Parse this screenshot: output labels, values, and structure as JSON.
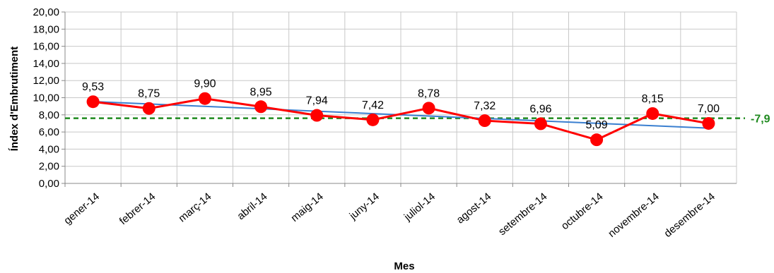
{
  "chart_data": {
    "type": "line",
    "categories": [
      "gener-14",
      "febrer-14",
      "març-14",
      "abril-14",
      "maig-14",
      "juny-14",
      "juliol-14",
      "agost-14",
      "setembre-14",
      "octubre-14",
      "novembre-14",
      "desembre-14"
    ],
    "series": [
      {
        "values": [
          9.53,
          8.75,
          9.9,
          8.95,
          7.94,
          7.42,
          8.78,
          7.32,
          6.96,
          5.09,
          8.15,
          7.0
        ],
        "data_labels": [
          "9,53",
          "8,75",
          "9,90",
          "8,95",
          "7,94",
          "7,42",
          "8,78",
          "7,32",
          "6,96",
          "5,09",
          "8,15",
          "7,00"
        ],
        "color": "#ff0000",
        "marker": "circle"
      }
    ],
    "trendline": {
      "start": 9.55,
      "end": 6.45,
      "color": "#3a7fd0"
    },
    "reference_line": {
      "value": 7.6,
      "label": "-7,9",
      "color": "#1f8a1f",
      "style": "dashed"
    },
    "yticks": [
      "0,00",
      "2,00",
      "4,00",
      "6,00",
      "8,00",
      "10,00",
      "12,00",
      "14,00",
      "16,00",
      "18,00",
      "20,00"
    ],
    "ylim": [
      0,
      20
    ],
    "xlabel": "Mes",
    "ylabel": "Índex d'Embrutiment",
    "grid": true
  }
}
